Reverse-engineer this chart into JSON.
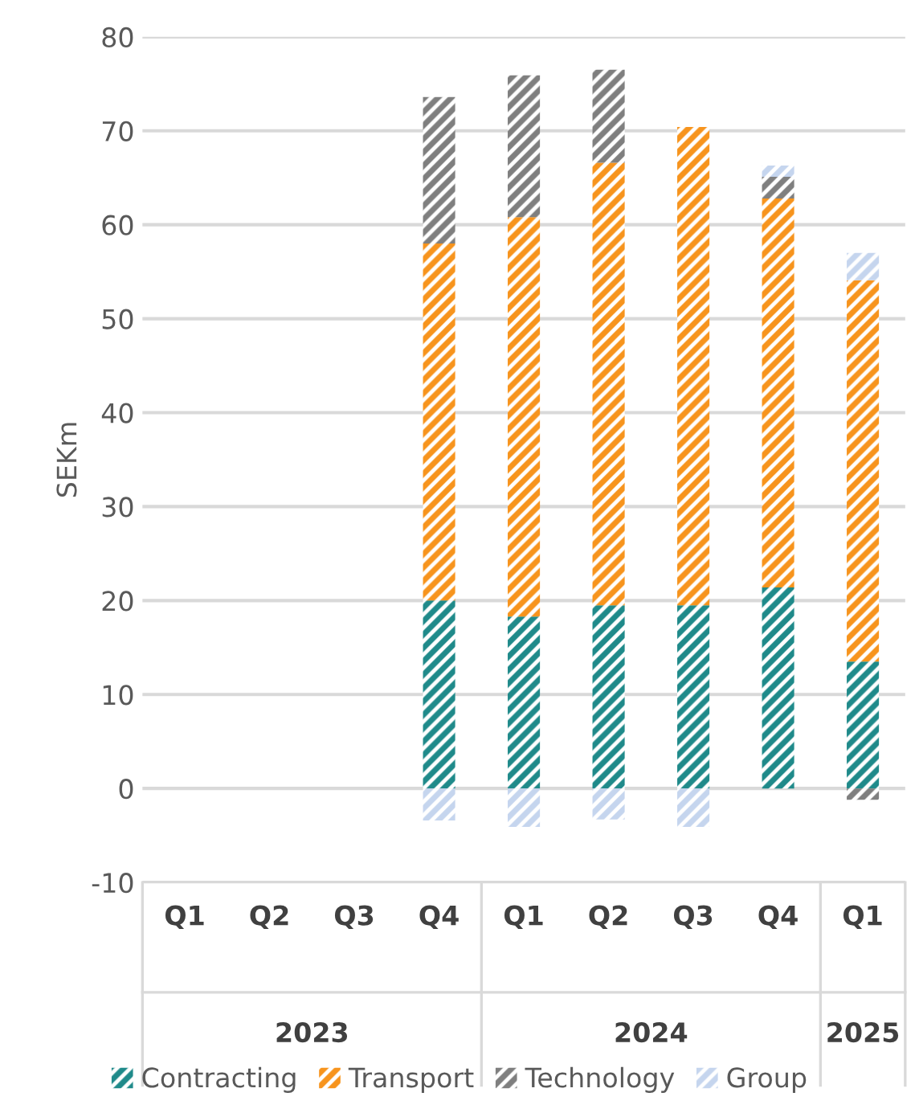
{
  "chart_data": {
    "type": "bar",
    "stacked": true,
    "ylabel": "SEKm",
    "categories": [
      "Q1",
      "Q2",
      "Q3",
      "Q4",
      "Q1",
      "Q2",
      "Q3",
      "Q4",
      "Q1"
    ],
    "annotations": [
      "2023",
      "2024",
      "2025"
    ],
    "series": [
      {
        "name": "Contracting",
        "color": "#1f8a8a",
        "values": [
          null,
          null,
          null,
          20.0,
          18.3,
          19.5,
          19.5,
          21.4,
          13.5
        ]
      },
      {
        "name": "Transport",
        "color": "#f7941d",
        "values": [
          null,
          null,
          null,
          38.0,
          42.5,
          47.1,
          50.9,
          41.4,
          40.6
        ]
      },
      {
        "name": "Technology",
        "color": "#7f7f7f",
        "values": [
          null,
          null,
          null,
          15.6,
          15.1,
          9.9,
          null,
          2.3,
          -1.2
        ]
      },
      {
        "name": "Group",
        "color": "#c5d5ee",
        "values": [
          null,
          null,
          null,
          -3.4,
          -4.1,
          -3.3,
          -4.1,
          1.2,
          2.9
        ]
      }
    ],
    "ylim": [
      -10,
      80
    ],
    "yticks": [
      -10,
      0,
      10,
      20,
      30,
      40,
      50,
      60,
      70,
      80
    ],
    "grid": "y",
    "legend": "bottom"
  }
}
